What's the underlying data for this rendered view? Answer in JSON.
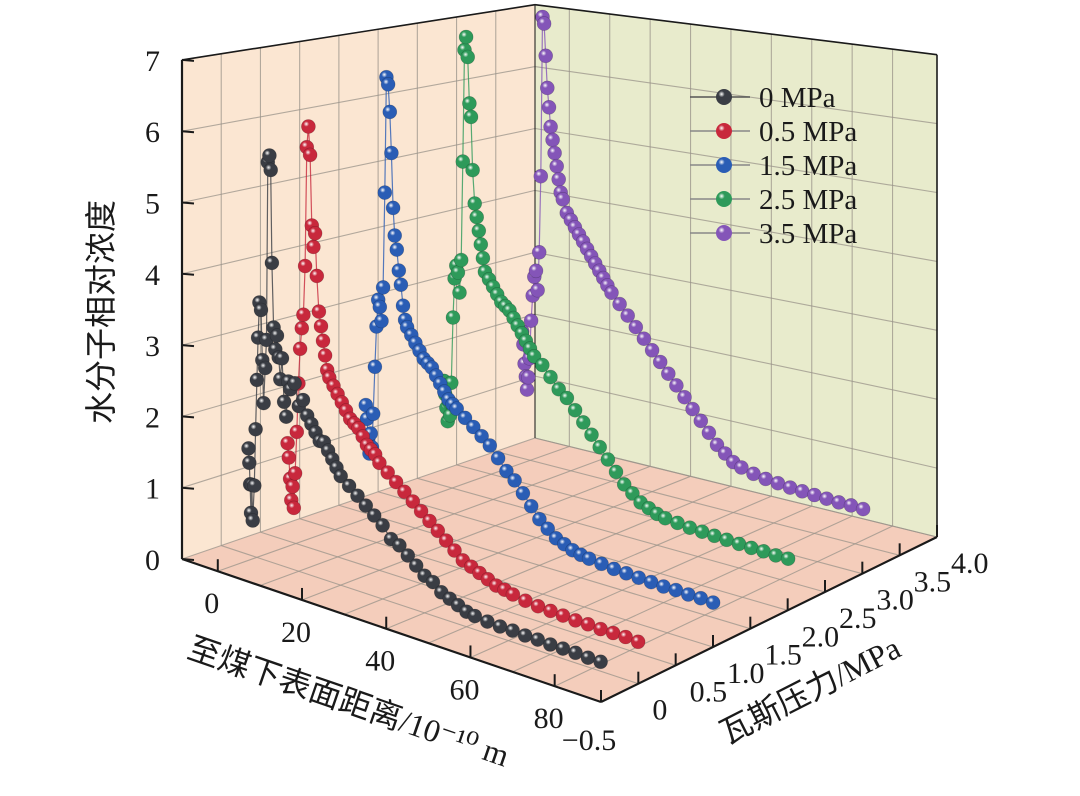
{
  "chart_data": {
    "type": "scatter",
    "subtype": "3d-line-scatter",
    "title": "",
    "xlabel": "至煤下表面距离/10⁻¹⁰ m",
    "ylabel": "瓦斯压力/MPa",
    "zlabel": "水分子相对浓度",
    "x_ticks": [
      "0",
      "20",
      "40",
      "60",
      "80"
    ],
    "x_tick_values": [
      0,
      20,
      40,
      60,
      80
    ],
    "y_ticks": [
      "−0.5",
      "0",
      "0.5",
      "1.0",
      "1.5",
      "2.0",
      "2.5",
      "3.0",
      "3.5",
      "4.0"
    ],
    "y_tick_values": [
      -0.5,
      0,
      0.5,
      1.0,
      1.5,
      2.0,
      2.5,
      3.0,
      3.5,
      4.0
    ],
    "z_ticks": [
      "0",
      "1",
      "2",
      "3",
      "4",
      "5",
      "6",
      "7"
    ],
    "z_tick_values": [
      0,
      1,
      2,
      3,
      4,
      5,
      6,
      7
    ],
    "xlim": [
      -8.5,
      91
    ],
    "ylim": [
      -0.5,
      4.0
    ],
    "zlim": [
      0,
      7
    ],
    "grid": true,
    "legend_position": "top-right",
    "colors": {
      "left_wall": "#fbe6d2",
      "right_wall": "#e8ebcc",
      "floor": "#f4cdbb",
      "grid": "#9a938a",
      "axis": "#1a1a1a"
    },
    "series": [
      {
        "name": "0 MPa",
        "pressure": 0,
        "color": "#3a3d44",
        "x": [
          -2.0,
          -1.8,
          -1.6,
          -1.4,
          -1.2,
          -1.0,
          -0.6,
          -0.3,
          0.0,
          0.3,
          0.6,
          1.0,
          1.3,
          1.6,
          2.0,
          2.3,
          2.6,
          3.0,
          3.3,
          3.6,
          4.0,
          4.4,
          4.8,
          5.2,
          5.6,
          6.0,
          6.5,
          7.0,
          7.5,
          8.0,
          9,
          10,
          11,
          12,
          13,
          14,
          15,
          16,
          17,
          18,
          19,
          20,
          22,
          24,
          26,
          28,
          30,
          32,
          34,
          36,
          38,
          40,
          42,
          44,
          46,
          48,
          50,
          52,
          55,
          58,
          61,
          64,
          67,
          70,
          73,
          76,
          79,
          82
        ],
        "z": [
          1.5,
          1.3,
          1.0,
          0.6,
          1.0,
          0.5,
          1.0,
          1.8,
          2.5,
          3.1,
          3.6,
          3.5,
          2.8,
          2.2,
          2.7,
          3.1,
          5.6,
          5.7,
          5.5,
          4.2,
          3.3,
          3.0,
          3.2,
          2.9,
          2.6,
          2.9,
          2.3,
          2.1,
          2.6,
          2.5,
          2.6,
          2.3,
          2.4,
          2.2,
          2.1,
          2.0,
          1.9,
          1.9,
          1.8,
          1.7,
          1.6,
          1.5,
          1.4,
          1.3,
          1.2,
          1.1,
          1.0,
          0.85,
          0.8,
          0.7,
          0.6,
          0.5,
          0.45,
          0.35,
          0.3,
          0.25,
          0.2,
          0.18,
          0.16,
          0.15,
          0.15,
          0.14,
          0.14,
          0.13,
          0.13,
          0.13,
          0.12,
          0.12
        ]
      },
      {
        "name": "0.5 MPa",
        "pressure": 0.5,
        "color": "#c8283c",
        "x": [
          -2.0,
          -1.7,
          -1.4,
          -1.1,
          -0.8,
          -0.5,
          -0.2,
          0.2,
          0.6,
          1.0,
          1.4,
          1.8,
          2.2,
          2.6,
          3.0,
          3.4,
          3.8,
          4.2,
          4.6,
          5.0,
          5.5,
          6.0,
          6.5,
          7.0,
          7.5,
          8.0,
          9,
          10,
          11,
          12,
          13,
          14,
          15,
          16,
          17,
          18,
          19,
          20,
          22,
          24,
          26,
          28,
          30,
          32,
          34,
          36,
          38,
          40,
          42,
          44,
          46,
          48,
          50,
          52,
          55,
          58,
          61,
          64,
          67,
          70,
          73,
          76,
          79,
          82
        ],
        "z": [
          1.4,
          1.2,
          0.9,
          0.6,
          0.8,
          0.5,
          1.0,
          1.6,
          2.3,
          2.8,
          3.1,
          3.3,
          4.0,
          5.7,
          6.0,
          5.6,
          4.6,
          4.3,
          4.5,
          3.9,
          3.4,
          3.2,
          3.0,
          2.8,
          2.6,
          2.5,
          2.4,
          2.3,
          2.2,
          2.1,
          2.0,
          1.95,
          1.9,
          1.8,
          1.7,
          1.65,
          1.6,
          1.5,
          1.4,
          1.3,
          1.2,
          1.1,
          1.0,
          0.9,
          0.8,
          0.7,
          0.6,
          0.5,
          0.45,
          0.4,
          0.35,
          0.3,
          0.28,
          0.25,
          0.22,
          0.2,
          0.19,
          0.18,
          0.17,
          0.17,
          0.16,
          0.16,
          0.16,
          0.15
        ]
      },
      {
        "name": "1.5 MPa",
        "pressure": 1.5,
        "color": "#2a5db5",
        "x": [
          -2.0,
          -1.7,
          -1.4,
          -1.1,
          -0.8,
          -0.5,
          -0.2,
          0.2,
          0.6,
          1.0,
          1.4,
          1.8,
          2.2,
          2.6,
          3.0,
          3.4,
          3.8,
          4.2,
          4.6,
          5.0,
          5.5,
          6.0,
          6.5,
          7.0,
          7.5,
          8.0,
          9,
          10,
          11,
          12,
          13,
          14,
          15,
          16,
          17,
          18,
          19,
          20,
          22,
          24,
          26,
          28,
          30,
          32,
          34,
          36,
          38,
          40,
          42,
          44,
          46,
          48,
          50,
          52,
          55,
          58,
          61,
          64,
          67,
          70,
          73,
          76,
          79,
          82
        ],
        "z": [
          1.6,
          1.4,
          1.1,
          0.9,
          1.2,
          1.0,
          1.5,
          2.2,
          2.8,
          3.2,
          3.1,
          2.9,
          3.4,
          4.8,
          6.5,
          6.4,
          6.0,
          5.4,
          4.6,
          4.2,
          4.0,
          3.7,
          3.5,
          3.2,
          3.0,
          2.9,
          2.8,
          2.7,
          2.6,
          2.5,
          2.45,
          2.4,
          2.3,
          2.2,
          2.1,
          2.0,
          1.95,
          1.9,
          1.8,
          1.7,
          1.6,
          1.5,
          1.35,
          1.2,
          1.1,
          0.95,
          0.8,
          0.65,
          0.55,
          0.45,
          0.4,
          0.35,
          0.32,
          0.3,
          0.28,
          0.26,
          0.25,
          0.24,
          0.23,
          0.22,
          0.22,
          0.21,
          0.21,
          0.2
        ]
      },
      {
        "name": "2.5 MPa",
        "pressure": 2.5,
        "color": "#2e9a5a",
        "x": [
          -2.0,
          -1.7,
          -1.4,
          -1.1,
          -0.8,
          -0.5,
          -0.2,
          0.2,
          0.6,
          1.0,
          1.4,
          1.8,
          2.2,
          2.6,
          3.0,
          3.4,
          3.8,
          4.2,
          4.6,
          5.0,
          5.5,
          6.0,
          6.5,
          7.0,
          7.5,
          8.0,
          9,
          10,
          11,
          12,
          13,
          14,
          15,
          16,
          17,
          18,
          19,
          20,
          22,
          24,
          26,
          28,
          30,
          32,
          34,
          36,
          38,
          40,
          42,
          44,
          46,
          48,
          50,
          52,
          55,
          58,
          61,
          64,
          67,
          70,
          73,
          76,
          79,
          82
        ],
        "z": [
          1.6,
          1.4,
          1.2,
          1.0,
          1.3,
          1.1,
          1.6,
          2.6,
          3.2,
          3.4,
          3.3,
          3.0,
          3.5,
          5.0,
          6.7,
          6.9,
          6.6,
          5.9,
          5.7,
          4.9,
          4.4,
          4.2,
          4.0,
          3.8,
          3.6,
          3.4,
          3.3,
          3.2,
          3.1,
          3.0,
          2.95,
          2.9,
          2.8,
          2.7,
          2.6,
          2.5,
          2.4,
          2.3,
          2.2,
          2.05,
          1.9,
          1.8,
          1.65,
          1.5,
          1.35,
          1.2,
          1.05,
          0.9,
          0.75,
          0.65,
          0.55,
          0.5,
          0.45,
          0.42,
          0.4,
          0.38,
          0.37,
          0.36,
          0.35,
          0.34,
          0.33,
          0.33,
          0.32,
          0.32
        ]
      },
      {
        "name": "3.5 MPa",
        "pressure": 3.5,
        "color": "#8455b8",
        "x": [
          -2.0,
          -1.7,
          -1.4,
          -1.1,
          -0.8,
          -0.5,
          -0.2,
          0.2,
          0.6,
          1.0,
          1.4,
          1.8,
          2.2,
          2.6,
          3.0,
          3.4,
          3.8,
          4.2,
          4.6,
          5.0,
          5.5,
          6.0,
          6.5,
          7.0,
          7.5,
          8.0,
          9,
          10,
          11,
          12,
          13,
          14,
          15,
          16,
          17,
          18,
          19,
          20,
          22,
          24,
          26,
          28,
          30,
          32,
          34,
          36,
          38,
          40,
          42,
          44,
          46,
          48,
          50,
          52,
          55,
          58,
          61,
          64,
          67,
          70,
          73,
          76,
          79,
          82
        ],
        "z": [
          2.0,
          1.8,
          1.5,
          1.3,
          1.1,
          1.3,
          1.6,
          2.2,
          2.6,
          2.9,
          3.0,
          2.7,
          3.3,
          4.5,
          7.0,
          6.9,
          6.4,
          5.9,
          5.6,
          5.3,
          5.1,
          4.9,
          4.7,
          4.5,
          4.3,
          4.2,
          4.0,
          3.9,
          3.8,
          3.7,
          3.6,
          3.5,
          3.4,
          3.3,
          3.2,
          3.1,
          3.0,
          2.9,
          2.75,
          2.6,
          2.45,
          2.3,
          2.15,
          2.0,
          1.85,
          1.7,
          1.55,
          1.4,
          1.25,
          1.1,
          0.95,
          0.85,
          0.75,
          0.7,
          0.65,
          0.62,
          0.6,
          0.58,
          0.57,
          0.56,
          0.55,
          0.54,
          0.54,
          0.53
        ]
      }
    ]
  }
}
